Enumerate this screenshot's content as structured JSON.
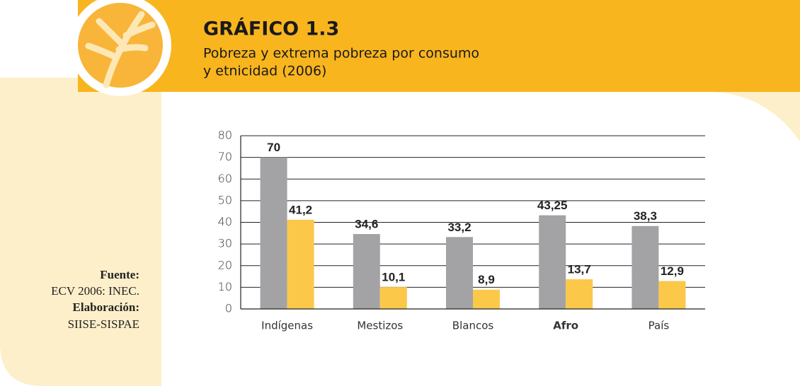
{
  "chart_data": {
    "type": "bar",
    "title": "GRÁFICO 1.3",
    "subtitle": [
      "Pobreza y extrema pobreza por consumo",
      "y etnicidad (2006)"
    ],
    "categories": [
      "Indígenas",
      "Mestizos",
      "Blancos",
      "Afro",
      "País"
    ],
    "bold_categories": [
      3
    ],
    "series": [
      {
        "color": "#a3a3a6",
        "values": [
          70,
          34.6,
          33.2,
          43.25,
          38.3
        ],
        "value_labels": [
          "70",
          "34,6",
          "33,2",
          "43,25",
          "38,3"
        ]
      },
      {
        "color": "#fbc84a",
        "values": [
          41.2,
          10.1,
          8.9,
          13.7,
          12.9
        ],
        "value_labels": [
          "41,2",
          "10,1",
          "8,9",
          "13,7",
          "12,9"
        ]
      }
    ],
    "ylim": [
      0,
      80
    ],
    "yticks": [
      0,
      10,
      20,
      30,
      40,
      50,
      60,
      70,
      80
    ],
    "grid": true,
    "source": [
      "Fuente:",
      "ECV 2006: INEC.",
      "Elaboración:",
      "SIISE-SISPAE"
    ]
  }
}
